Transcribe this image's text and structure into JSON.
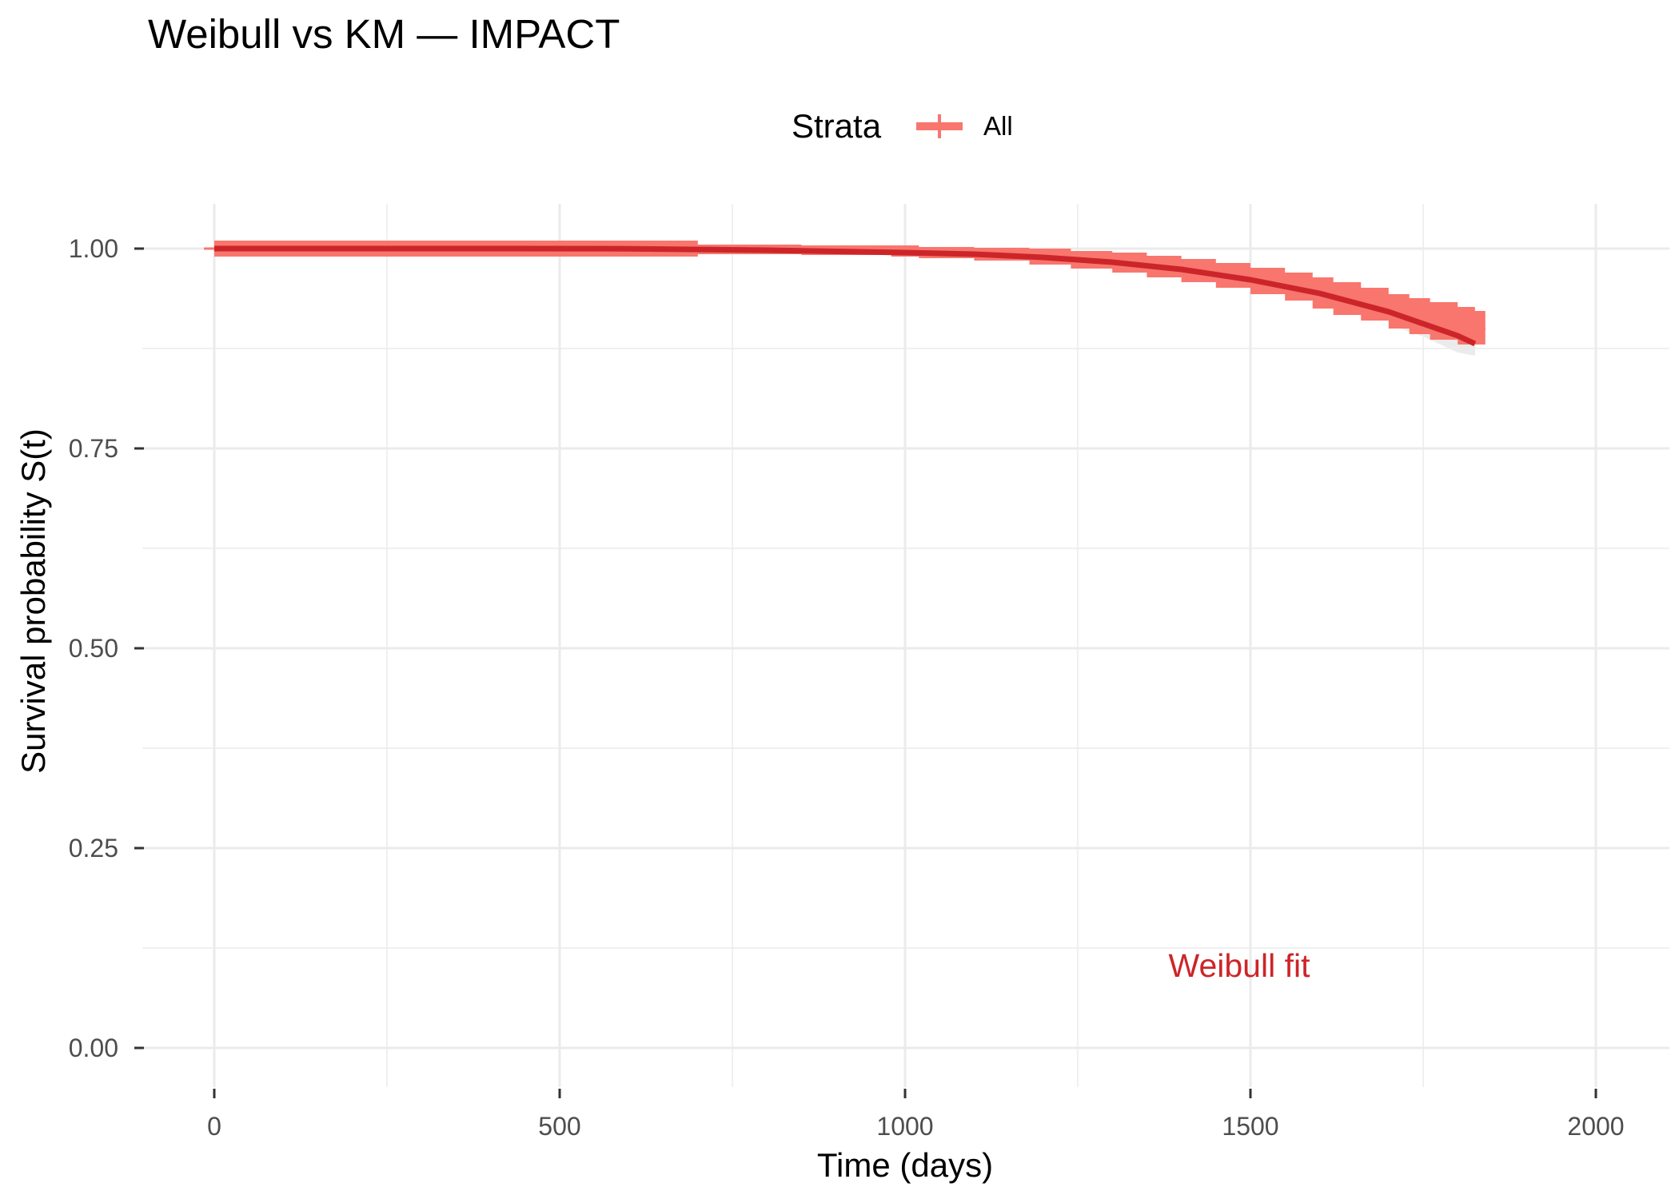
{
  "chart_data": {
    "type": "line",
    "title": "Weibull vs KM — IMPACT",
    "xlabel": "Time (days)",
    "ylabel": "Survival probability S(t)",
    "xlim": [
      -100,
      2100
    ],
    "ylim": [
      -0.05,
      1.05
    ],
    "x_ticks": [
      0,
      500,
      1000,
      1500,
      2000
    ],
    "x_tick_labels": [
      "0",
      "500",
      "1000",
      "1500",
      "2000"
    ],
    "y_ticks": [
      0,
      0.25,
      0.5,
      0.75,
      1.0
    ],
    "y_tick_labels": [
      "0.00",
      "0.25",
      "0.50",
      "0.75",
      "1.00"
    ],
    "grid": true,
    "legend": {
      "title": "Strata",
      "position": "top",
      "entries": [
        {
          "label": "All",
          "color": "#f8766d"
        }
      ]
    },
    "series": [
      {
        "name": "All",
        "kind": "km-step-with-ci",
        "color": "#f8766d",
        "x": [
          0,
          700,
          850,
          980,
          1020,
          1100,
          1180,
          1240,
          1300,
          1350,
          1400,
          1450,
          1500,
          1550,
          1590,
          1620,
          1660,
          1700,
          1730,
          1760,
          1800,
          1825,
          1840
        ],
        "y": [
          1.0,
          0.999,
          0.998,
          0.997,
          0.995,
          0.993,
          0.99,
          0.986,
          0.983,
          0.978,
          0.973,
          0.967,
          0.96,
          0.953,
          0.945,
          0.938,
          0.931,
          0.922,
          0.916,
          0.91,
          0.903,
          0.9,
          0.9
        ],
        "lower": [
          0.99,
          0.993,
          0.992,
          0.99,
          0.988,
          0.985,
          0.98,
          0.975,
          0.97,
          0.964,
          0.958,
          0.951,
          0.943,
          0.935,
          0.925,
          0.917,
          0.91,
          0.9,
          0.893,
          0.886,
          0.88,
          0.88,
          0.88
        ],
        "upper": [
          1.01,
          1.005,
          1.004,
          1.004,
          1.002,
          1.001,
          1.0,
          0.997,
          0.995,
          0.991,
          0.987,
          0.982,
          0.976,
          0.97,
          0.964,
          0.958,
          0.951,
          0.943,
          0.938,
          0.933,
          0.927,
          0.922,
          0.922
        ]
      },
      {
        "name": "Weibull fit",
        "kind": "parametric-curve",
        "color": "#cc2529",
        "x": [
          0,
          200,
          400,
          600,
          800,
          900,
          1000,
          1100,
          1200,
          1300,
          1400,
          1500,
          1600,
          1700,
          1800,
          1825
        ],
        "y": [
          1.0,
          1.0,
          1.0,
          0.9998,
          0.998,
          0.9965,
          0.995,
          0.993,
          0.989,
          0.983,
          0.974,
          0.961,
          0.944,
          0.921,
          0.891,
          0.881
        ],
        "ci_lower_tail": {
          "x": [
            1700,
            1750,
            1800,
            1825
          ],
          "lower": [
            0.905,
            0.89,
            0.87,
            0.866
          ],
          "upper": [
            0.935,
            0.93,
            0.925,
            0.925
          ],
          "color": "#ebebeb"
        }
      }
    ],
    "annotations": [
      {
        "text": "Weibull fit",
        "x": 1500,
        "y": 0.1,
        "color": "#cc2529"
      }
    ]
  }
}
